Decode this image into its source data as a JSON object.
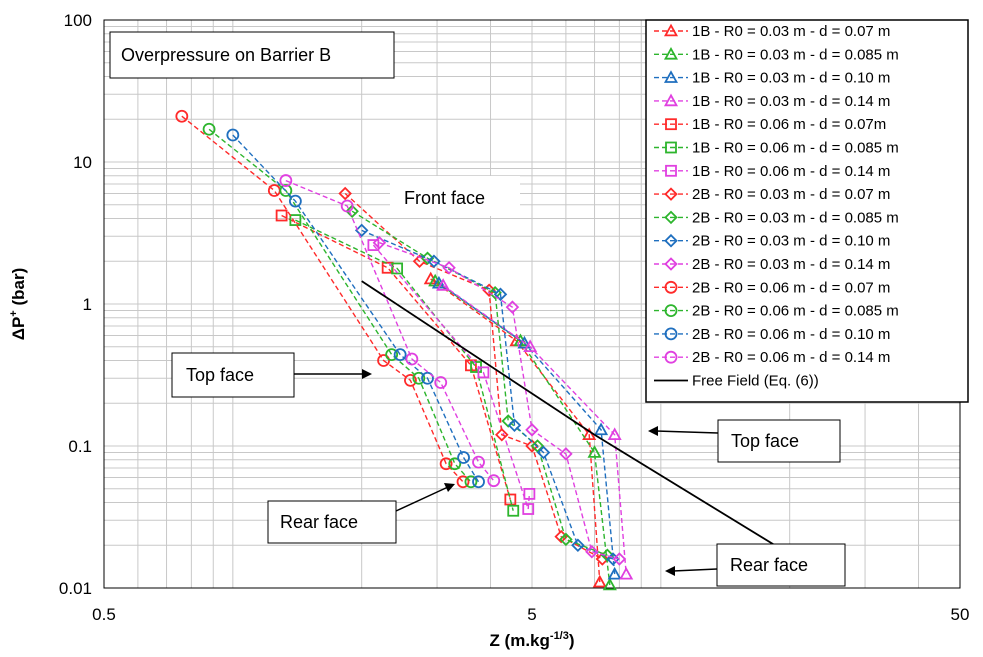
{
  "chart_data": {
    "type": "line",
    "title": "Overpressure on Barrier B",
    "xlabel": "Z (m.kg",
    "xlabel_sup": "-1/3",
    "xlabel_close": ")",
    "ylabel": "ΔP",
    "ylabel_sup": "+",
    "ylabel_unit": " (bar)",
    "x_scale": "log",
    "y_scale": "log",
    "xlim": [
      0.5,
      50
    ],
    "ylim": [
      0.01,
      100
    ],
    "x_ticks": [
      "0.5",
      "5",
      "50"
    ],
    "y_ticks": [
      "0.01",
      "0.1",
      "1",
      "10",
      "100"
    ],
    "grid": true,
    "legend_position": "top-right",
    "series": [
      {
        "name": "1B - R0 = 0.03 m - d = 0.07 m",
        "color": "#ff2a2a",
        "marker": "triangle",
        "points": [
          [
            2.9,
            1.5
          ],
          [
            4.6,
            0.55
          ],
          [
            6.8,
            0.12
          ],
          [
            7.2,
            0.011
          ]
        ]
      },
      {
        "name": "1B - R0 = 0.03 m - d = 0.085 m",
        "color": "#2db52d",
        "marker": "triangle",
        "points": [
          [
            2.97,
            1.45
          ],
          [
            4.7,
            0.55
          ],
          [
            7.0,
            0.09
          ],
          [
            7.6,
            0.0105
          ]
        ]
      },
      {
        "name": "1B - R0 = 0.03 m - d = 0.10 m",
        "color": "#1f6fbf",
        "marker": "triangle",
        "points": [
          [
            3.03,
            1.4
          ],
          [
            4.8,
            0.53
          ],
          [
            7.25,
            0.13
          ],
          [
            7.8,
            0.0125
          ]
        ]
      },
      {
        "name": "1B - R0 = 0.03 m - d = 0.14 m",
        "color": "#e040e0",
        "marker": "triangle",
        "points": [
          [
            3.1,
            1.35
          ],
          [
            4.95,
            0.5
          ],
          [
            7.8,
            0.12
          ],
          [
            8.3,
            0.0125
          ]
        ]
      },
      {
        "name": "1B - R0 = 0.06 m - d = 0.07m",
        "color": "#ff2a2a",
        "marker": "square",
        "points": [
          [
            1.3,
            4.2
          ],
          [
            2.3,
            1.8
          ],
          [
            3.6,
            0.37
          ],
          [
            4.45,
            0.042
          ]
        ]
      },
      {
        "name": "1B - R0 = 0.06 m - d = 0.085 m",
        "color": "#2db52d",
        "marker": "square",
        "points": [
          [
            1.4,
            3.9
          ],
          [
            2.42,
            1.78
          ],
          [
            3.7,
            0.36
          ],
          [
            4.52,
            0.035
          ]
        ]
      },
      {
        "name": "1B - R0 = 0.06 m - d = 0.14 m",
        "color": "#e040e0",
        "marker": "square",
        "points": [
          [
            2.13,
            2.6
          ],
          [
            3.85,
            0.33
          ],
          [
            4.9,
            0.036
          ],
          [
            4.93,
            0.046
          ]
        ]
      },
      {
        "name": "2B - R0 = 0.03 m - d = 0.07 m",
        "color": "#ff2a2a",
        "marker": "diamond",
        "points": [
          [
            1.83,
            6.0
          ],
          [
            2.73,
            2.0
          ],
          [
            3.97,
            1.25
          ],
          [
            4.25,
            0.12
          ],
          [
            5.0,
            0.1
          ],
          [
            5.85,
            0.023
          ],
          [
            7.3,
            0.016
          ]
        ]
      },
      {
        "name": "2B - R0 = 0.03 m - d = 0.085 m",
        "color": "#2db52d",
        "marker": "diamond",
        "points": [
          [
            1.9,
            4.5
          ],
          [
            2.85,
            2.1
          ],
          [
            4.1,
            1.2
          ],
          [
            4.4,
            0.15
          ],
          [
            5.15,
            0.1
          ],
          [
            6.0,
            0.022
          ],
          [
            7.5,
            0.017
          ]
        ]
      },
      {
        "name": "2B - R0 = 0.03 m - d = 0.10 m",
        "color": "#1f6fbf",
        "marker": "diamond",
        "points": [
          [
            2.0,
            3.3
          ],
          [
            2.95,
            2.0
          ],
          [
            4.22,
            1.17
          ],
          [
            4.55,
            0.14
          ],
          [
            5.32,
            0.09
          ],
          [
            6.4,
            0.02
          ],
          [
            7.73,
            0.016
          ]
        ]
      },
      {
        "name": "2B - R0 = 0.03 m - d = 0.14 m",
        "color": "#e040e0",
        "marker": "diamond",
        "points": [
          [
            2.2,
            2.7
          ],
          [
            3.2,
            1.8
          ],
          [
            4.5,
            0.95
          ],
          [
            5.0,
            0.13
          ],
          [
            6.0,
            0.088
          ],
          [
            6.9,
            0.018
          ],
          [
            8.0,
            0.016
          ]
        ]
      },
      {
        "name": "2B - R0 = 0.06 m - d = 0.07 m",
        "color": "#ff2a2a",
        "marker": "circle",
        "points": [
          [
            0.76,
            21
          ],
          [
            1.25,
            6.3
          ],
          [
            2.25,
            0.4
          ],
          [
            2.6,
            0.29
          ],
          [
            3.15,
            0.075
          ],
          [
            3.45,
            0.056
          ]
        ]
      },
      {
        "name": "2B - R0 = 0.06 m - d = 0.085 m",
        "color": "#2db52d",
        "marker": "circle",
        "points": [
          [
            0.88,
            17
          ],
          [
            1.33,
            6.3
          ],
          [
            2.35,
            0.44
          ],
          [
            2.72,
            0.3
          ],
          [
            3.3,
            0.075
          ],
          [
            3.6,
            0.056
          ]
        ]
      },
      {
        "name": "2B - R0 = 0.06 m - d = 0.10 m",
        "color": "#1f6fbf",
        "marker": "circle",
        "points": [
          [
            1.0,
            15.5
          ],
          [
            1.4,
            5.3
          ],
          [
            2.46,
            0.44
          ],
          [
            2.85,
            0.3
          ],
          [
            3.46,
            0.083
          ],
          [
            3.75,
            0.056
          ]
        ]
      },
      {
        "name": "2B - R0 = 0.06 m - d = 0.14 m",
        "color": "#e040e0",
        "marker": "circle",
        "points": [
          [
            1.33,
            7.4
          ],
          [
            1.85,
            4.9
          ],
          [
            2.62,
            0.41
          ],
          [
            3.06,
            0.28
          ],
          [
            3.75,
            0.077
          ],
          [
            4.07,
            0.057
          ]
        ]
      },
      {
        "name": "Free Field (Eq. (6))",
        "color": "#000000",
        "marker": "none",
        "points": [
          [
            2.0,
            1.45
          ],
          [
            7.0,
            0.12
          ],
          [
            19.0,
            0.019
          ]
        ]
      }
    ],
    "annotations": [
      {
        "text": "Front face",
        "arrow": false
      },
      {
        "text": "Top face",
        "arrow": true
      },
      {
        "text": "Top face",
        "arrow": true
      },
      {
        "text": "Rear face",
        "arrow": true
      },
      {
        "text": "Rear face",
        "arrow": true
      }
    ]
  }
}
